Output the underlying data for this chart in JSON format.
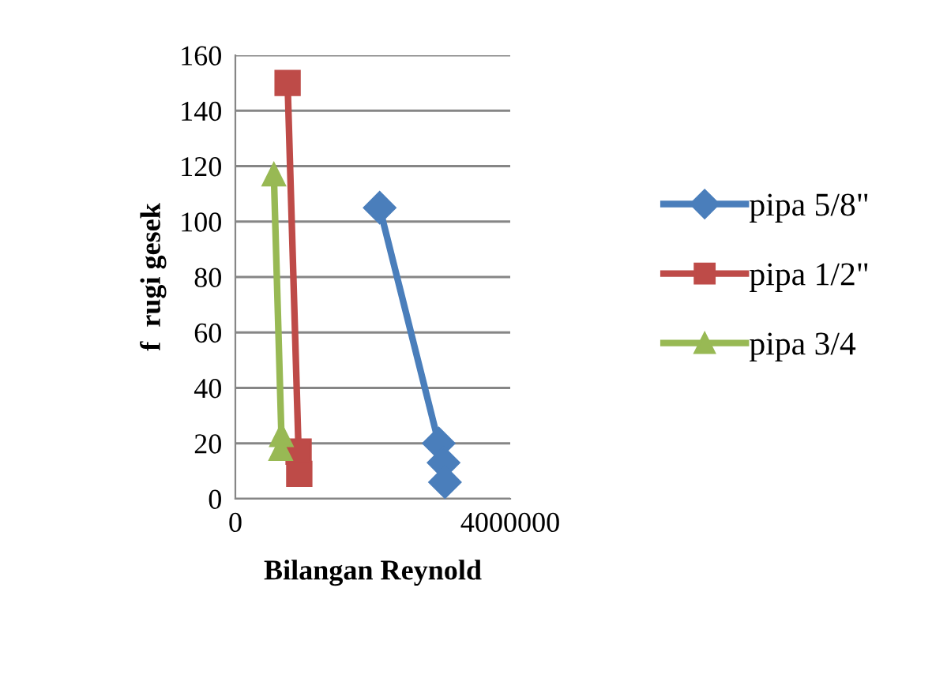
{
  "chart_data": {
    "type": "line",
    "xlabel": "Bilangan Reynold",
    "ylabel": "f  rugi gesek",
    "xlim": [
      0,
      4000000
    ],
    "xticks": [
      0,
      4000000
    ],
    "ylim": [
      0,
      160
    ],
    "yticks": [
      0,
      20,
      40,
      60,
      80,
      100,
      120,
      140,
      160
    ],
    "grid": "y",
    "legend": "right",
    "series": [
      {
        "name": "pipa 5/8\"",
        "color": "#4a7ebb",
        "marker": "diamond",
        "x": [
          2100000,
          2960000,
          3030000,
          3050000
        ],
        "values": [
          105,
          20,
          13,
          6
        ]
      },
      {
        "name": "pipa 1/2\"",
        "color": "#be4b48",
        "marker": "square",
        "x": [
          760000,
          920000,
          930000
        ],
        "values": [
          150,
          17,
          9
        ]
      },
      {
        "name": "pipa 3/4",
        "color": "#98b954",
        "marker": "triangle",
        "x": [
          560000,
          670000,
          660000
        ],
        "values": [
          117,
          23,
          18
        ]
      }
    ]
  }
}
